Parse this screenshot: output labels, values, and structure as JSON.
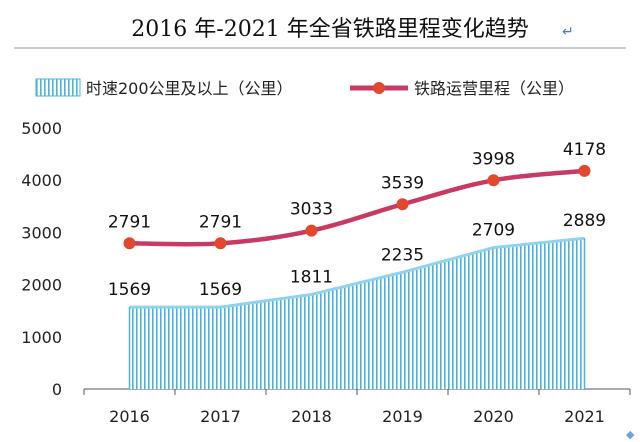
{
  "chart_data": {
    "type": "area",
    "title": "2016 年-2021 年全省铁路里程变化趋势",
    "x": [
      "2016",
      "2017",
      "2018",
      "2019",
      "2020",
      "2021"
    ],
    "ylim": [
      0,
      5000
    ],
    "yticks": [
      0,
      1000,
      2000,
      3000,
      4000,
      5000
    ],
    "grid": false,
    "legend": "top",
    "series": [
      {
        "name": "时速200公里及以上（公里）",
        "type": "area",
        "values": [
          1569,
          1569,
          1811,
          2235,
          2709,
          2889
        ],
        "labels": [
          "1569",
          "1569",
          "1811",
          "2235",
          "2709",
          "2889"
        ],
        "color": "#5bc0e4"
      },
      {
        "name": "铁路运营里程（公里）",
        "type": "line",
        "values": [
          2791,
          2791,
          3033,
          3539,
          3998,
          4178
        ],
        "labels": [
          "2791",
          "2791",
          "3033",
          "3539",
          "3998",
          "4178"
        ],
        "color": "#c83a64",
        "marker_color": "#e2482e"
      }
    ]
  }
}
